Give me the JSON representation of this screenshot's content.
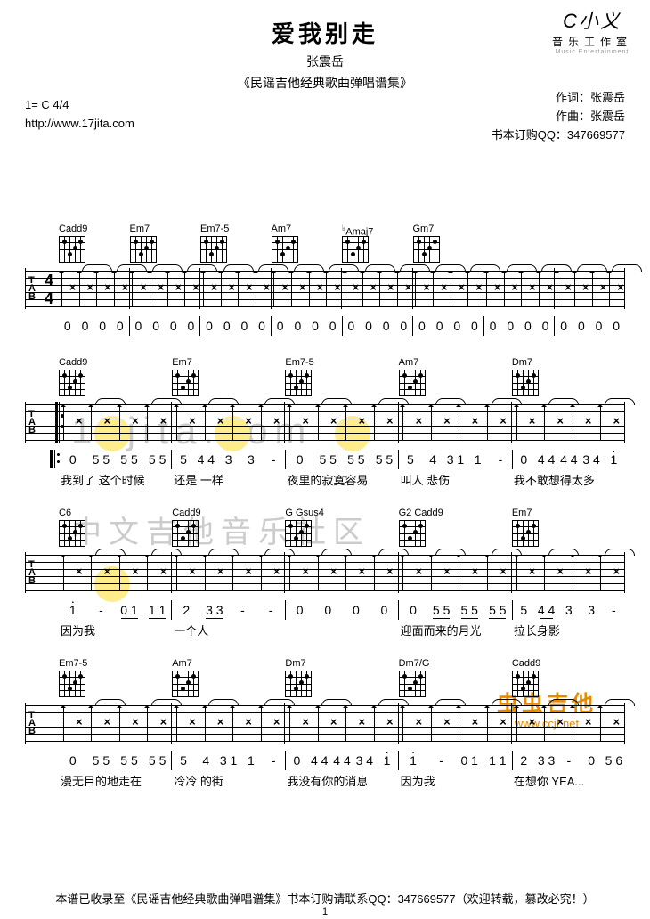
{
  "logo": {
    "ico": "C小义",
    "txt": "音乐工作室",
    "sub": "Music Entertainment"
  },
  "header": {
    "title": "爱我别走",
    "artist": "张震岳",
    "album": "《民谣吉他经典歌曲弹唱谱集》"
  },
  "meta_left": {
    "key": "1= C 4/4",
    "url": "http://www.17jita.com"
  },
  "meta_right": {
    "lyricist": "作词：张震岳",
    "composer": "作曲：张震岳",
    "order": "书本订购QQ：347669577"
  },
  "systems": [
    {
      "chords": [
        "Cadd9",
        "Em7",
        "Em7-5",
        "Am7",
        "♭Amaj7",
        "Gm7",
        ""
      ],
      "show_ts": true,
      "measures": 8,
      "numbers": [
        [
          "0",
          "0",
          "0",
          "0"
        ],
        [
          "0",
          "0",
          "0",
          "0"
        ],
        [
          "0",
          "0",
          "0",
          "0"
        ],
        [
          "0",
          "0",
          "0",
          "0"
        ],
        [
          "0",
          "0",
          "0",
          "0"
        ],
        [
          "0",
          "0",
          "0",
          "0"
        ],
        [
          "0",
          "0",
          "0",
          "0"
        ],
        [
          "0",
          "0",
          "0",
          "0"
        ]
      ],
      "lyrics": [
        "",
        "",
        "",
        "",
        "",
        "",
        "",
        ""
      ]
    },
    {
      "chords": [
        "Cadd9",
        "Em7",
        "Em7-5",
        "Am7",
        "Dm7"
      ],
      "repeat": true,
      "highlight": [
        0,
        1,
        2
      ],
      "measures": 5,
      "numbers": [
        [
          "0",
          "5 5",
          "5 5",
          "5 5"
        ],
        [
          "5",
          "4 4",
          "3",
          "3",
          "-"
        ],
        [
          "0",
          "5 5",
          "5 5",
          "5 5"
        ],
        [
          "5",
          "4",
          "3 1",
          "1",
          "-"
        ],
        [
          "0",
          "4 4",
          "4 4",
          "3 4",
          "i"
        ]
      ],
      "lyrics": [
        "我到了 这个时候",
        "还是 一样",
        "夜里的寂寞容易",
        "叫人 悲伤",
        "我不敢想得太多"
      ]
    },
    {
      "chords": [
        "C6",
        "Cadd9",
        "G  Gsus4",
        "G2  Cadd9",
        "Em7"
      ],
      "measures": 5,
      "highlight": [
        0
      ],
      "numbers": [
        [
          "i",
          "-",
          "0 1",
          "1 1"
        ],
        [
          "2",
          "3 3",
          "-",
          "-"
        ],
        [
          "0",
          "0",
          "0",
          "0"
        ],
        [
          "0",
          "5 5",
          "5 5",
          "5 5"
        ],
        [
          "5",
          "4 4",
          "3",
          "3",
          "-"
        ]
      ],
      "lyrics": [
        "        因为我",
        "一个人",
        "",
        "迎面而来的月光",
        "拉长身影"
      ]
    },
    {
      "chords": [
        "Em7-5",
        "Am7",
        "Dm7",
        "Dm7/G",
        "Cadd9"
      ],
      "measures": 5,
      "numbers": [
        [
          "0",
          "5 5",
          "5 5",
          "5 5"
        ],
        [
          "5",
          "4",
          "3 1",
          "1",
          "-"
        ],
        [
          "0",
          "4 4",
          "4 4",
          "3 4",
          "i"
        ],
        [
          "i",
          "-",
          "0 1",
          "1 1"
        ],
        [
          "2",
          "3 3",
          "-",
          "0",
          "5 6"
        ]
      ],
      "lyrics": [
        "漫无目的地走在",
        "冷冷 的街",
        "我没有你的消息",
        "        因为我",
        "在想你      YEA..."
      ]
    }
  ],
  "watermarks": {
    "site": "17jita.com",
    "cn": "中文吉他音乐社区",
    "brand": "虫虫吉他",
    "brand_url": "www.ccjt.net"
  },
  "footer": {
    "text": "本谱已收录至《民谣吉他经典歌曲弹唱谱集》书本订购请联系QQ：347669577（欢迎转载，篡改必究！）",
    "page": "1"
  }
}
